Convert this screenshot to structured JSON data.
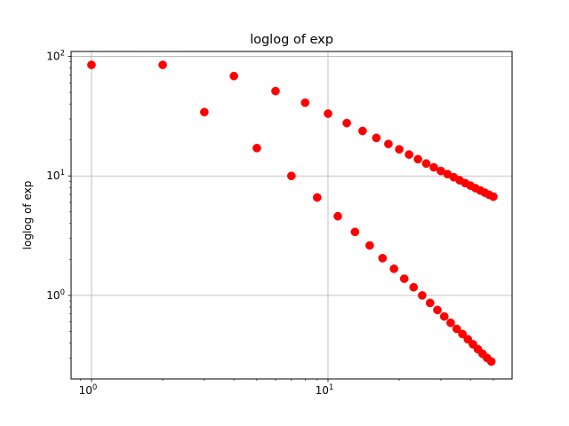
{
  "chart_data": {
    "type": "scatter",
    "title": "loglog of exp",
    "xlabel": "",
    "ylabel": "loglog of exp",
    "xscale": "log",
    "yscale": "log",
    "xlim": [
      0.82,
      60
    ],
    "ylim": [
      0.2,
      110
    ],
    "grid": true,
    "color": "#ff0000",
    "x_ticks": [
      {
        "value": 1,
        "base": "10",
        "exp": "0"
      },
      {
        "value": 10,
        "base": "10",
        "exp": "1"
      }
    ],
    "y_ticks": [
      {
        "value": 1,
        "base": "10",
        "exp": "0"
      },
      {
        "value": 10,
        "base": "10",
        "exp": "1"
      },
      {
        "value": 100,
        "base": "10",
        "exp": "2"
      }
    ],
    "series": [
      {
        "x": [
          1,
          2,
          3,
          4,
          5,
          6,
          7,
          8,
          9,
          10,
          11,
          12,
          13,
          14,
          15,
          16,
          17,
          18,
          19,
          20,
          21,
          22,
          23,
          24,
          25,
          26,
          27,
          28,
          29,
          30,
          31,
          32,
          33,
          34,
          35,
          36,
          37,
          38,
          39,
          40,
          41,
          42,
          43,
          44,
          45,
          46,
          47,
          48,
          49,
          50
        ],
        "y": [
          85,
          85,
          34.2,
          68.5,
          17.1,
          51.3,
          10,
          41,
          6.6,
          33.2,
          4.6,
          27.7,
          3.4,
          23.8,
          2.62,
          20.8,
          2.05,
          18.5,
          1.67,
          16.7,
          1.38,
          15.1,
          1.17,
          13.8,
          1.0,
          12.7,
          0.865,
          11.8,
          0.755,
          11.0,
          0.667,
          10.35,
          0.59,
          9.75,
          0.525,
          9.2,
          0.475,
          8.7,
          0.43,
          8.3,
          0.39,
          7.9,
          0.355,
          7.55,
          0.325,
          7.25,
          0.3,
          6.95,
          0.28,
          6.7
        ]
      }
    ]
  }
}
